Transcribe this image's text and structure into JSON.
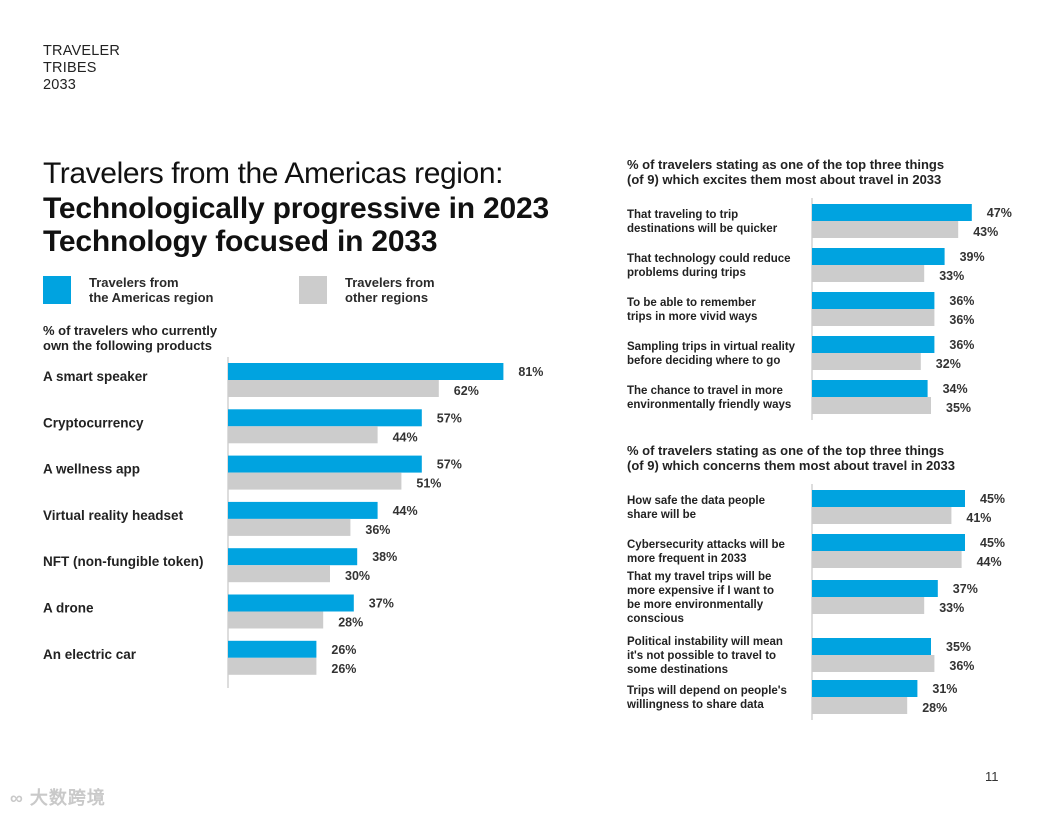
{
  "brand": {
    "lines": [
      "TRAVELER",
      "TRIBES",
      "2033"
    ]
  },
  "headline": {
    "line1": "Travelers from the Americas region:",
    "line2": "Technologically progressive in 2023",
    "line3": "Technology focused in 2033"
  },
  "colors": {
    "americas": "#00a3e0",
    "other": "#cccccc",
    "axis": "#bbbbbb"
  },
  "legend": {
    "americas": {
      "line1": "Travelers from",
      "line2": "the Americas region"
    },
    "other": {
      "line1": "Travelers from",
      "line2": "other regions"
    }
  },
  "chart_data": [
    {
      "type": "bar",
      "title_lines": [
        "% of travelers who currently",
        "own the following products"
      ],
      "categories": [
        [
          "A smart speaker"
        ],
        [
          "Cryptocurrency"
        ],
        [
          "A wellness app"
        ],
        [
          "Virtual reality headset"
        ],
        [
          "NFT (non-fungible token)"
        ],
        [
          "A drone"
        ],
        [
          "An electric car"
        ]
      ],
      "series": [
        {
          "name": "Travelers from the Americas region",
          "values": [
            81,
            57,
            57,
            44,
            38,
            37,
            26
          ],
          "labels": [
            "81%",
            "57%",
            "57%",
            "44%",
            "38%",
            "37%",
            "26%"
          ]
        },
        {
          "name": "Travelers from other regions",
          "values": [
            62,
            44,
            51,
            36,
            30,
            28,
            26
          ],
          "labels": [
            "62%",
            "44%",
            "51%",
            "36%",
            "30%",
            "28%",
            "26%"
          ]
        }
      ],
      "orientation": "horizontal",
      "xlim": [
        0,
        100
      ],
      "grid": false
    },
    {
      "type": "bar",
      "title_lines": [
        "% of travelers stating as one of the top three things",
        "(of 9) which excites them most about travel in 2033"
      ],
      "categories": [
        [
          "That traveling to trip",
          "destinations will be quicker"
        ],
        [
          "That technology could reduce",
          "problems during trips"
        ],
        [
          "To be able to remember",
          "trips in more vivid ways"
        ],
        [
          "Sampling trips in virtual reality",
          "before deciding where to go"
        ],
        [
          "The chance to travel in more",
          "environmentally friendly ways"
        ]
      ],
      "series": [
        {
          "name": "Travelers from the Americas region",
          "values": [
            47,
            39,
            36,
            36,
            34
          ],
          "labels": [
            "47%",
            "39%",
            "36%",
            "36%",
            "34%"
          ]
        },
        {
          "name": "Travelers from other regions",
          "values": [
            43,
            33,
            36,
            32,
            35
          ],
          "labels": [
            "43%",
            "33%",
            "36%",
            "32%",
            "35%"
          ]
        }
      ],
      "orientation": "horizontal",
      "xlim": [
        0,
        100
      ],
      "grid": false
    },
    {
      "type": "bar",
      "title_lines": [
        "% of travelers stating as one of the top three things",
        "(of 9) which concerns them most about travel in 2033"
      ],
      "categories": [
        [
          "How safe the data people",
          "share will be"
        ],
        [
          "Cybersecurity attacks will be",
          "more frequent in 2033"
        ],
        [
          "That my travel trips will be",
          "more expensive if I want to",
          "be more environmentally",
          "conscious"
        ],
        [
          "Political instability will mean",
          "it's not possible to travel to",
          "some destinations"
        ],
        [
          "Trips will depend on people's",
          "willingness to share data"
        ]
      ],
      "series": [
        {
          "name": "Travelers from the Americas region",
          "values": [
            45,
            45,
            37,
            35,
            31
          ],
          "labels": [
            "45%",
            "45%",
            "37%",
            "35%",
            "31%"
          ]
        },
        {
          "name": "Travelers from other regions",
          "values": [
            41,
            44,
            33,
            36,
            28
          ],
          "labels": [
            "41%",
            "44%",
            "33%",
            "36%",
            "28%"
          ]
        }
      ],
      "orientation": "horizontal",
      "xlim": [
        0,
        100
      ],
      "grid": false
    }
  ],
  "page_number": "11",
  "watermark": "大数跨境"
}
